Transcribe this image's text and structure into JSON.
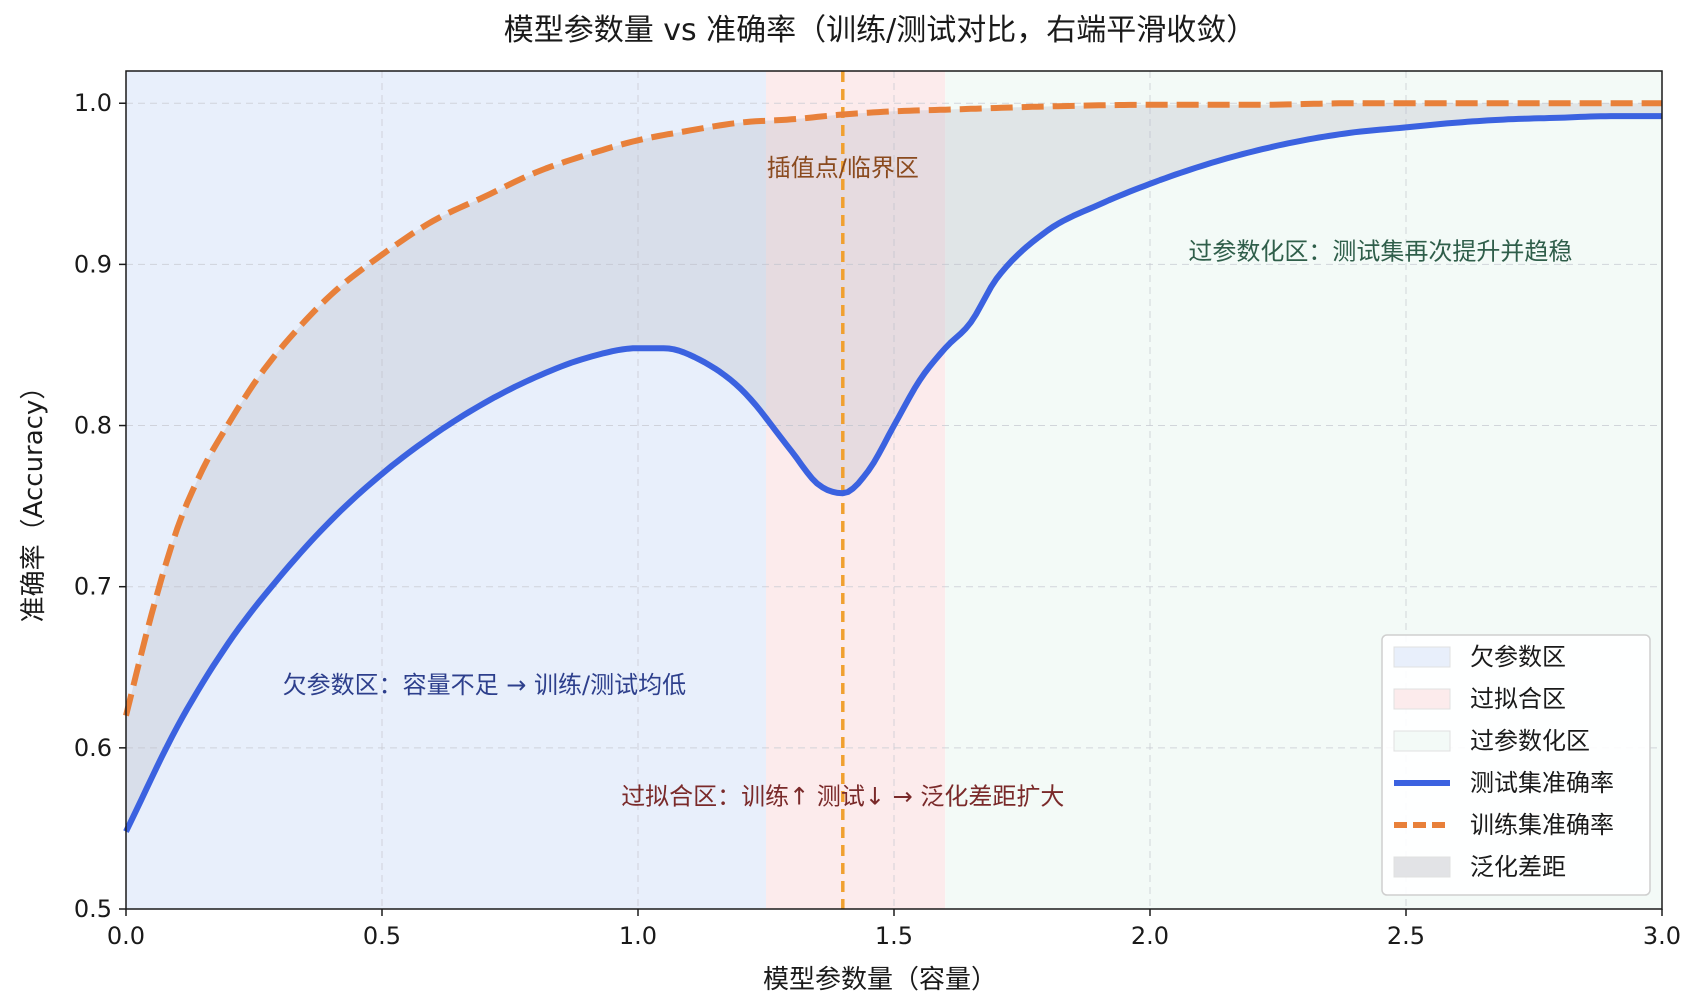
{
  "chart_data": {
    "type": "line",
    "title": "模型参数量 vs 准确率（训练/测试对比，右端平滑收敛）",
    "xlabel": "模型参数量（容量）",
    "ylabel": "准确率（Accuracy）",
    "xlim": [
      0.0,
      3.0
    ],
    "ylim": [
      0.5,
      1.02
    ],
    "grid": true,
    "legend_position": "bottom-right",
    "xticks": [
      "0.0",
      "0.5",
      "1.0",
      "1.5",
      "2.0",
      "2.5",
      "3.0"
    ],
    "xtick_values": [
      0.0,
      0.5,
      1.0,
      1.5,
      2.0,
      2.5,
      3.0
    ],
    "yticks": [
      "0.5",
      "0.6",
      "0.7",
      "0.8",
      "0.9",
      "1.0"
    ],
    "ytick_values": [
      0.5,
      0.6,
      0.7,
      0.8,
      0.9,
      1.0
    ],
    "regions": [
      {
        "name": "欠参数区",
        "x0": 0.0,
        "x1": 1.25,
        "color": "#e8effb"
      },
      {
        "name": "过拟合区",
        "x0": 1.25,
        "x1": 1.6,
        "color": "#fcebec"
      },
      {
        "name": "过参数化区",
        "x0": 1.6,
        "x1": 3.0,
        "color": "#f3faf7"
      }
    ],
    "vline": {
      "x": 1.4,
      "color": "#f0a030"
    },
    "series": [
      {
        "name": "测试集准确率",
        "color": "#3b62e0",
        "style": "solid",
        "x": [
          0.0,
          0.1,
          0.2,
          0.3,
          0.4,
          0.5,
          0.6,
          0.7,
          0.8,
          0.9,
          1.0,
          1.05,
          1.1,
          1.2,
          1.3,
          1.35,
          1.4,
          1.45,
          1.5,
          1.55,
          1.6,
          1.65,
          1.7,
          1.8,
          1.9,
          2.0,
          2.1,
          2.2,
          2.3,
          2.4,
          2.5,
          2.6,
          2.7,
          2.8,
          2.9,
          3.0
        ],
        "values": [
          0.548,
          0.613,
          0.665,
          0.706,
          0.741,
          0.77,
          0.794,
          0.814,
          0.83,
          0.842,
          0.848,
          0.848,
          0.844,
          0.823,
          0.784,
          0.764,
          0.758,
          0.772,
          0.8,
          0.828,
          0.848,
          0.864,
          0.891,
          0.921,
          0.937,
          0.95,
          0.961,
          0.97,
          0.977,
          0.982,
          0.985,
          0.988,
          0.99,
          0.991,
          0.992,
          0.992
        ]
      },
      {
        "name": "训练集准确率",
        "color": "#e8803a",
        "style": "dashed",
        "x": [
          0.0,
          0.05,
          0.1,
          0.15,
          0.2,
          0.25,
          0.3,
          0.4,
          0.5,
          0.6,
          0.7,
          0.8,
          0.9,
          1.0,
          1.1,
          1.2,
          1.3,
          1.4,
          1.5,
          1.6,
          1.8,
          2.0,
          2.2,
          2.4,
          2.6,
          2.8,
          3.0
        ],
        "values": [
          0.62,
          0.683,
          0.736,
          0.773,
          0.801,
          0.826,
          0.847,
          0.881,
          0.906,
          0.927,
          0.942,
          0.957,
          0.968,
          0.977,
          0.983,
          0.988,
          0.99,
          0.993,
          0.995,
          0.996,
          0.998,
          0.999,
          0.999,
          1.0,
          1.0,
          1.0,
          1.0
        ]
      }
    ],
    "fill_between": {
      "name": "泛化差距",
      "color": "#b9bcc6"
    },
    "annotations": [
      {
        "text": "插值点/临界区",
        "x": 1.4,
        "y": 0.955,
        "color": "#8a4a1e"
      },
      {
        "text": "过参数化区：测试集再次提升并趋稳",
        "x": 2.45,
        "y": 0.903,
        "color": "#2f5e4a"
      },
      {
        "text": "欠参数区：容量不足 → 训练/测试均低",
        "x": 0.7,
        "y": 0.634,
        "color": "#2d3f8c"
      },
      {
        "text": "过拟合区：训练↑ 测试↓ → 泛化差距扩大",
        "x": 1.4,
        "y": 0.565,
        "color": "#7a2a2a"
      }
    ],
    "legend": [
      {
        "label": "欠参数区",
        "kind": "patch",
        "color": "#e8effb"
      },
      {
        "label": "过拟合区",
        "kind": "patch",
        "color": "#fcebec"
      },
      {
        "label": "过参数化区",
        "kind": "patch",
        "color": "#f3faf7"
      },
      {
        "label": "测试集准确率",
        "kind": "line",
        "color": "#3b62e0"
      },
      {
        "label": "训练集准确率",
        "kind": "dashed",
        "color": "#e8803a"
      },
      {
        "label": "泛化差距",
        "kind": "patch",
        "color": "#e2e3e6"
      }
    ]
  }
}
